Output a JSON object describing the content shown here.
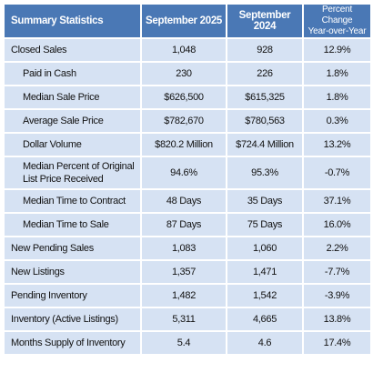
{
  "header": {
    "title": "Summary Statistics",
    "col_current": "September 2025",
    "col_previous": "September 2024",
    "col_change_line1": "Percent Change",
    "col_change_line2": "Year-over-Year"
  },
  "rows": [
    {
      "label": "Closed Sales",
      "current": "1,048",
      "previous": "928",
      "change": "12.9%"
    },
    {
      "label": "Paid in Cash",
      "current": "230",
      "previous": "226",
      "change": "1.8%"
    },
    {
      "label": "Median Sale Price",
      "current": "$626,500",
      "previous": "$615,325",
      "change": "1.8%"
    },
    {
      "label": "Average Sale Price",
      "current": "$782,670",
      "previous": "$780,563",
      "change": "0.3%"
    },
    {
      "label": "Dollar Volume",
      "current": "$820.2 Million",
      "previous": "$724.4 Million",
      "change": "13.2%"
    },
    {
      "label": "Median Percent of Original List Price Received",
      "current": "94.6%",
      "previous": "95.3%",
      "change": "-0.7%"
    },
    {
      "label": "Median Time to Contract",
      "current": "48 Days",
      "previous": "35 Days",
      "change": "37.1%"
    },
    {
      "label": "Median Time to Sale",
      "current": "87 Days",
      "previous": "75 Days",
      "change": "16.0%"
    },
    {
      "label": "New Pending Sales",
      "current": "1,083",
      "previous": "1,060",
      "change": "2.2%"
    },
    {
      "label": "New Listings",
      "current": "1,357",
      "previous": "1,471",
      "change": "-7.7%"
    },
    {
      "label": "Pending Inventory",
      "current": "1,482",
      "previous": "1,542",
      "change": "-3.9%"
    },
    {
      "label": "Inventory (Active Listings)",
      "current": "5,311",
      "previous": "4,665",
      "change": "13.8%"
    },
    {
      "label": "Months Supply of Inventory",
      "current": "5.4",
      "previous": "4.6",
      "change": "17.4%"
    }
  ],
  "colors": {
    "header_bg": "#4a78b5",
    "cell_bg": "#d6e2f3"
  }
}
